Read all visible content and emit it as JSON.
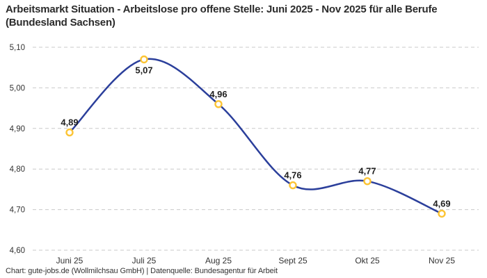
{
  "footer": {
    "credit": "Chart: gute-jobs.de (Wollmilchsau GmbH) | Datenquelle: Bundesagentur für Arbeit"
  },
  "chart_data": {
    "type": "line",
    "title": "Arbeitsmarkt Situation - Arbeitslose pro offene Stelle: Juni 2025 - Nov 2025 für alle Berufe (Bundesland Sachsen)",
    "categories": [
      "Juni 25",
      "Juli 25",
      "Aug 25",
      "Sept 25",
      "Okt 25",
      "Nov 25"
    ],
    "values": [
      4.89,
      5.07,
      4.96,
      4.76,
      4.77,
      4.69
    ],
    "value_labels": [
      "4,89",
      "5,07",
      "4,96",
      "4,76",
      "4,77",
      "4,69"
    ],
    "label_placement": [
      "above",
      "below",
      "above",
      "above",
      "above",
      "above"
    ],
    "xlabel": "",
    "ylabel": "",
    "ylim": [
      4.6,
      5.1
    ],
    "yticks": [
      4.6,
      4.7,
      4.8,
      4.9,
      5.0,
      5.1
    ],
    "ytick_labels": [
      "4,60",
      "4,70",
      "4,80",
      "4,90",
      "5,00",
      "5,10"
    ],
    "grid": "dashed-horizontal",
    "legend": "none",
    "line_smoothing": "spline",
    "colors": {
      "line": "#2b3f9b",
      "marker_fill": "#ffffff",
      "marker_stroke": "#fcc434",
      "gridline": "#c9c9c9",
      "tick_label": "#333333",
      "data_label": "#1f1f1f",
      "title": "#2b2b2b",
      "background": "#ffffff"
    }
  }
}
